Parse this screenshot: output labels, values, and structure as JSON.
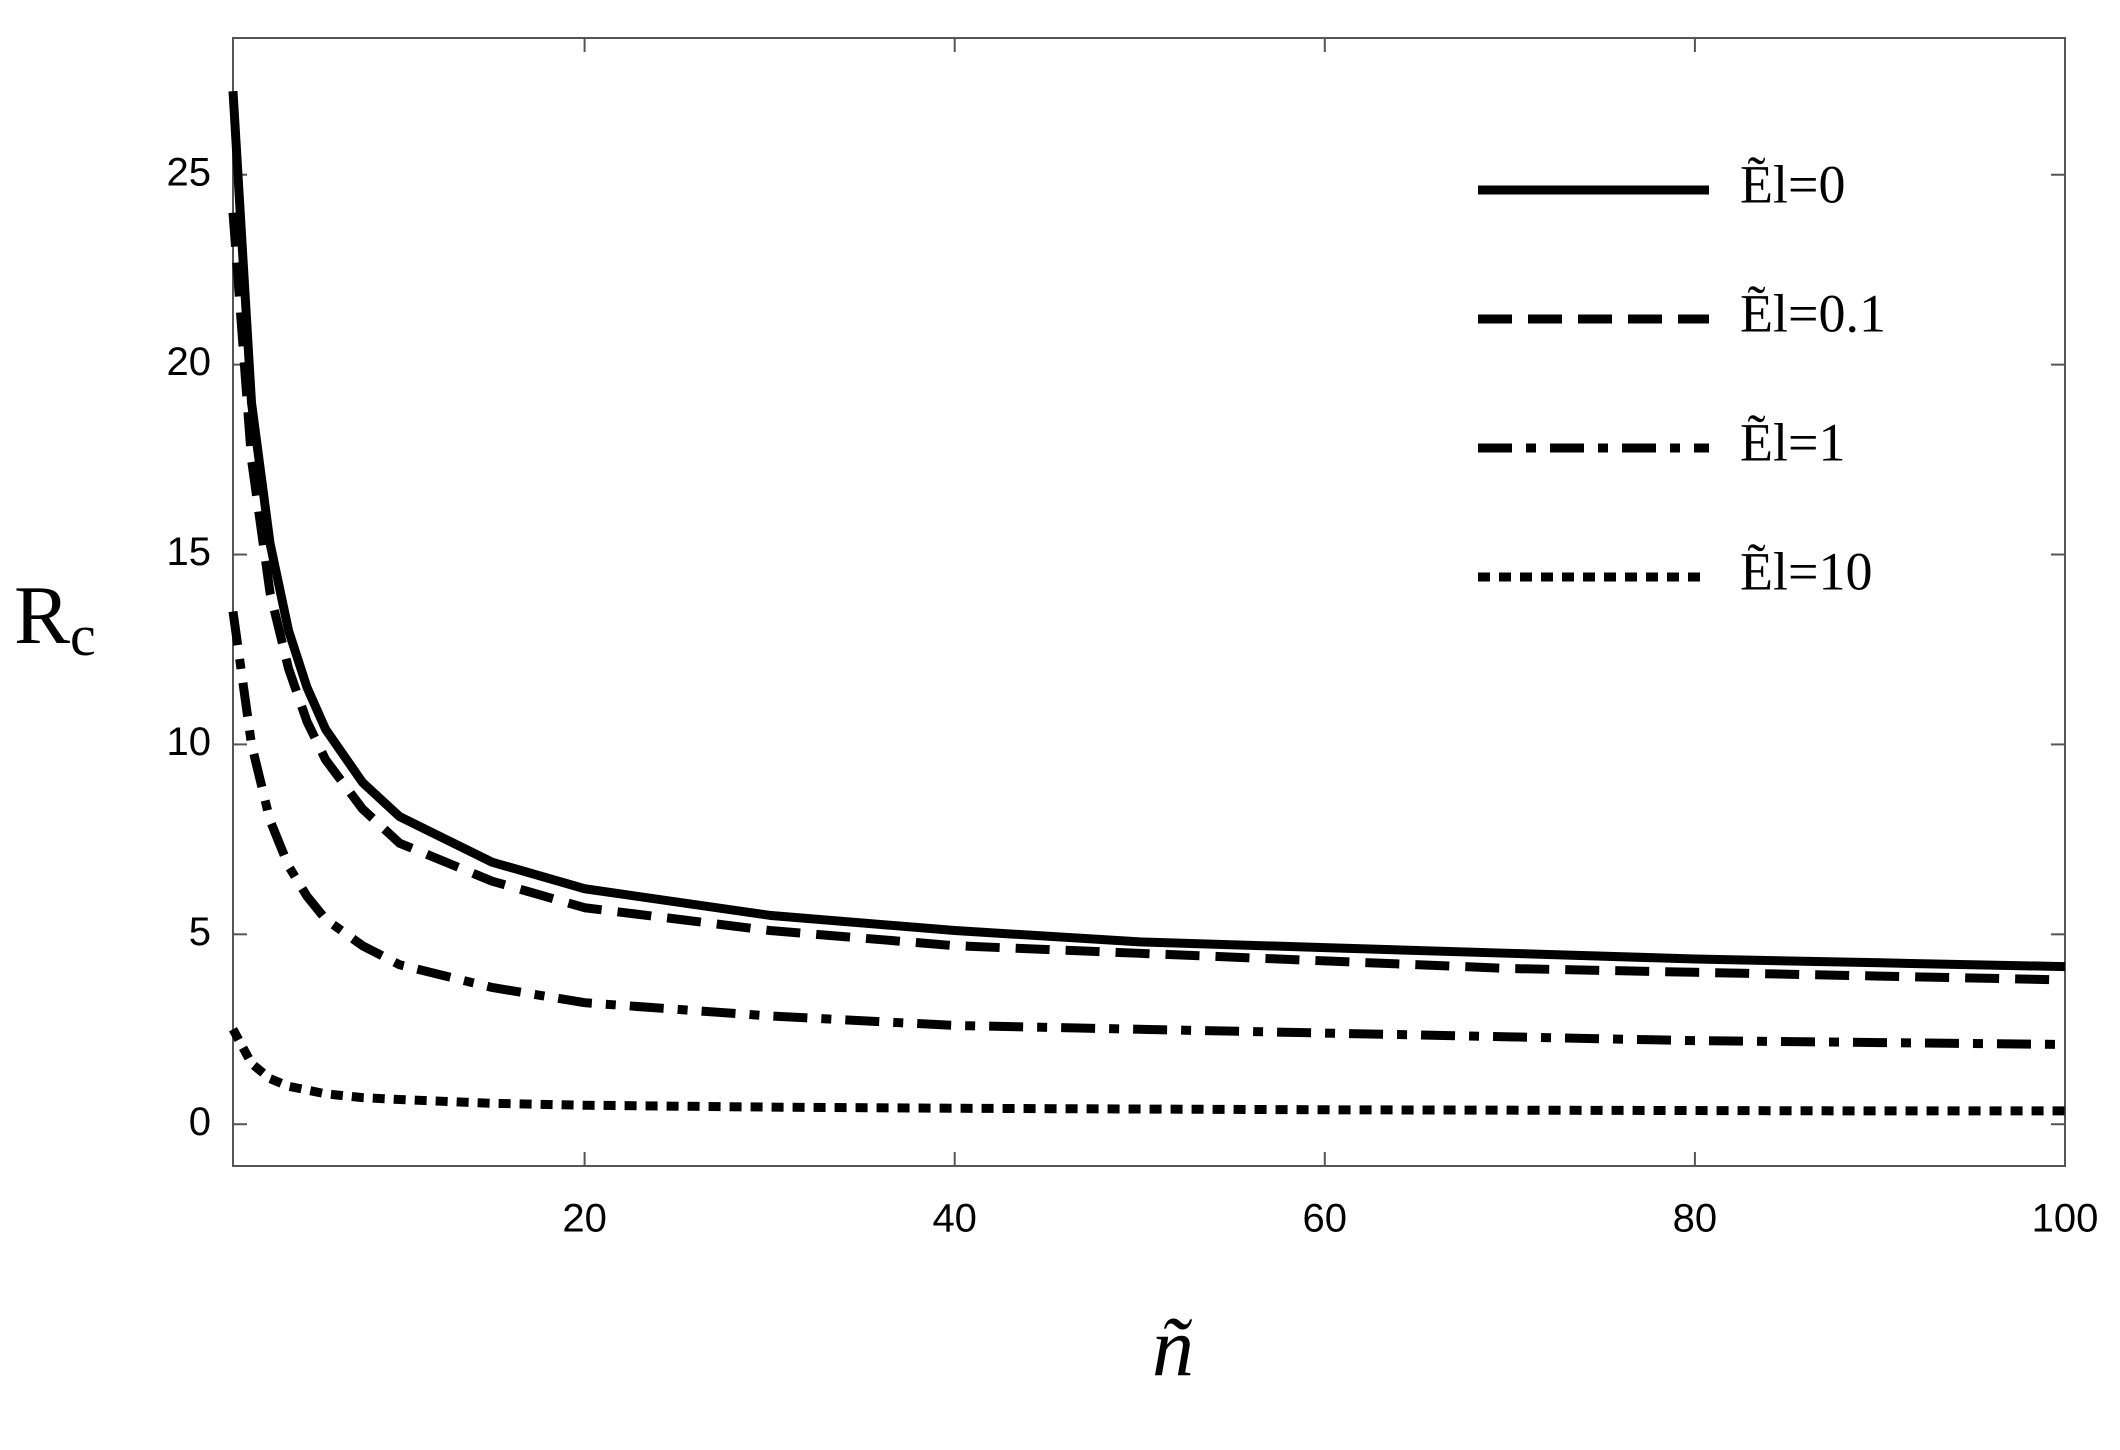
{
  "chart_data": {
    "type": "line",
    "ylabel": "R",
    "ylabel_subscript": "c",
    "xlabel": "ñ",
    "x": [
      1,
      2,
      3,
      4,
      5,
      6,
      8,
      10,
      15,
      20,
      30,
      40,
      50,
      60,
      70,
      80,
      90,
      100
    ],
    "series": [
      {
        "name": "Ẽl=0",
        "color": "#000000",
        "dash": "solid",
        "values": [
          27.2,
          19,
          15.3,
          13,
          11.5,
          10.4,
          9,
          8.1,
          6.9,
          6.2,
          5.5,
          5.1,
          4.8,
          4.65,
          4.5,
          4.35,
          4.25,
          4.15
        ]
      },
      {
        "name": "Ẽl=0.1",
        "color": "#000000",
        "dash": "dashed",
        "values": [
          24,
          17.5,
          14,
          12,
          10.6,
          9.6,
          8.3,
          7.4,
          6.4,
          5.7,
          5.1,
          4.7,
          4.5,
          4.3,
          4.1,
          4.0,
          3.9,
          3.8
        ]
      },
      {
        "name": "Ẽl=1",
        "color": "#000000",
        "dash": "dashdot",
        "values": [
          13.5,
          10,
          8,
          6.8,
          6,
          5.4,
          4.7,
          4.2,
          3.6,
          3.2,
          2.85,
          2.6,
          2.5,
          2.4,
          2.3,
          2.2,
          2.15,
          2.1
        ]
      },
      {
        "name": "Ẽl=10",
        "color": "#000000",
        "dash": "dotted",
        "values": [
          2.5,
          1.6,
          1.2,
          1.0,
          0.9,
          0.8,
          0.7,
          0.65,
          0.55,
          0.5,
          0.45,
          0.42,
          0.4,
          0.38,
          0.37,
          0.36,
          0.35,
          0.35
        ]
      }
    ],
    "xlim": [
      1,
      100
    ],
    "ylim": [
      -1.1,
      28.6
    ],
    "xticks": [
      20,
      40,
      60,
      80,
      100
    ],
    "yticks": [
      0,
      5,
      10,
      15,
      20,
      25
    ],
    "grid": false,
    "legend": "upper right"
  }
}
